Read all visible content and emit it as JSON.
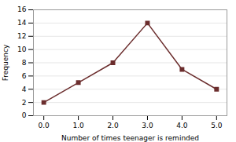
{
  "chart_data": {
    "type": "line",
    "x": [
      0,
      1,
      2,
      3,
      4,
      5
    ],
    "values": [
      2,
      5,
      8,
      14,
      7,
      4
    ],
    "color": "#6b2d2d",
    "marker": "square",
    "xlabel": "Number of times teenager is reminded",
    "ylabel": "Frequency",
    "xlim": [
      -0.3,
      5.3
    ],
    "ylim": [
      0,
      16
    ],
    "xticks": [
      0,
      1,
      2,
      3,
      4,
      5
    ],
    "yticks": [
      0,
      2,
      4,
      6,
      8,
      10,
      12,
      14,
      16
    ],
    "grid": true
  }
}
